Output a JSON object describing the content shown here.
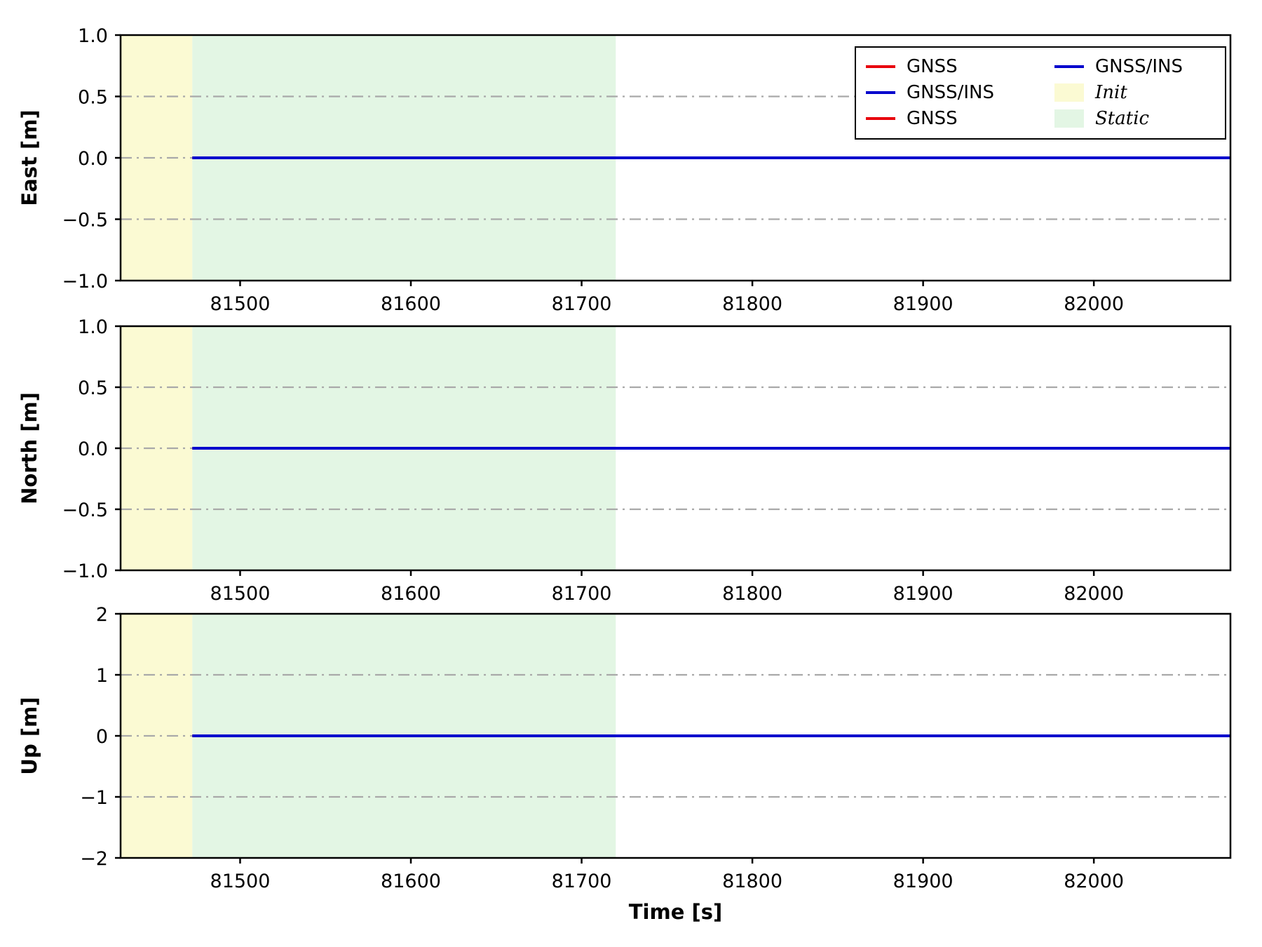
{
  "figure": {
    "xlabel": "Time [s]",
    "background": "#ffffff"
  },
  "style": {
    "axis_color": "#000000",
    "grid_color": "#a9a9a9",
    "gnss_color": "#e8000b",
    "ins_color": "#0000cd",
    "init_color": "#fbfad3",
    "static_color": "#e3f6e4"
  },
  "legend": {
    "columns": [
      [
        {
          "type": "line",
          "color": "#e8000b",
          "label": "GNSS",
          "italic": false
        },
        {
          "type": "line",
          "color": "#0000cd",
          "label": "GNSS/INS",
          "italic": false
        },
        {
          "type": "line",
          "color": "#e8000b",
          "label": "GNSS",
          "italic": false
        }
      ],
      [
        {
          "type": "line",
          "color": "#0000cd",
          "label": "GNSS/INS",
          "italic": false
        },
        {
          "type": "patch",
          "color": "#fbfad3",
          "label": "Init",
          "italic": true
        },
        {
          "type": "patch",
          "color": "#e3f6e4",
          "label": "Static",
          "italic": true
        }
      ]
    ]
  },
  "chart_data": [
    {
      "type": "line",
      "title": "",
      "ylabel": "East [m]",
      "ylim": [
        -1.0,
        1.0
      ],
      "yticks": [
        "−1.0",
        "−0.5",
        "0.0",
        "0.5",
        "1.0"
      ],
      "ytick_values": [
        -1.0,
        -0.5,
        0.0,
        0.5,
        1.0
      ],
      "grid_y": [
        -0.5,
        0.0,
        0.5
      ],
      "xlim": [
        81430,
        82080
      ],
      "xticks": [
        81500,
        81600,
        81700,
        81800,
        81900,
        82000
      ],
      "grid": "dash-dot horizontal",
      "regions": [
        {
          "label": "Init",
          "x0": 81430,
          "x1": 81472,
          "color_key": "init_color"
        },
        {
          "label": "Static",
          "x0": 81472,
          "x1": 81720,
          "color_key": "static_color"
        }
      ],
      "series": [
        {
          "name": "GNSS",
          "color_key": "gnss_color",
          "x": [
            81472,
            82080
          ],
          "y": [
            0,
            0
          ]
        },
        {
          "name": "GNSS/INS",
          "color_key": "ins_color",
          "x": [
            81472,
            82080
          ],
          "y": [
            0,
            0
          ]
        }
      ]
    },
    {
      "type": "line",
      "title": "",
      "ylabel": "North [m]",
      "ylim": [
        -1.0,
        1.0
      ],
      "yticks": [
        "−1.0",
        "−0.5",
        "0.0",
        "0.5",
        "1.0"
      ],
      "ytick_values": [
        -1.0,
        -0.5,
        0.0,
        0.5,
        1.0
      ],
      "grid_y": [
        -0.5,
        0.0,
        0.5
      ],
      "xlim": [
        81430,
        82080
      ],
      "xticks": [
        81500,
        81600,
        81700,
        81800,
        81900,
        82000
      ],
      "grid": "dash-dot horizontal",
      "regions": [
        {
          "label": "Init",
          "x0": 81430,
          "x1": 81472,
          "color_key": "init_color"
        },
        {
          "label": "Static",
          "x0": 81472,
          "x1": 81720,
          "color_key": "static_color"
        }
      ],
      "series": [
        {
          "name": "GNSS",
          "color_key": "gnss_color",
          "x": [
            81472,
            82080
          ],
          "y": [
            0,
            0
          ]
        },
        {
          "name": "GNSS/INS",
          "color_key": "ins_color",
          "x": [
            81472,
            82080
          ],
          "y": [
            0,
            0
          ]
        }
      ]
    },
    {
      "type": "line",
      "title": "",
      "ylabel": "Up [m]",
      "ylim": [
        -2,
        2
      ],
      "yticks": [
        "−2",
        "−1",
        "0",
        "1",
        "2"
      ],
      "ytick_values": [
        -2,
        -1,
        0,
        1,
        2
      ],
      "grid_y": [
        -1,
        0,
        1
      ],
      "xlim": [
        81430,
        82080
      ],
      "xticks": [
        81500,
        81600,
        81700,
        81800,
        81900,
        82000
      ],
      "grid": "dash-dot horizontal",
      "regions": [
        {
          "label": "Init",
          "x0": 81430,
          "x1": 81472,
          "color_key": "init_color"
        },
        {
          "label": "Static",
          "x0": 81472,
          "x1": 81720,
          "color_key": "static_color"
        }
      ],
      "series": [
        {
          "name": "GNSS",
          "color_key": "gnss_color",
          "x": [
            81472,
            82080
          ],
          "y": [
            0,
            0
          ]
        },
        {
          "name": "GNSS/INS",
          "color_key": "ins_color",
          "x": [
            81472,
            82080
          ],
          "y": [
            0,
            0
          ]
        }
      ]
    }
  ]
}
